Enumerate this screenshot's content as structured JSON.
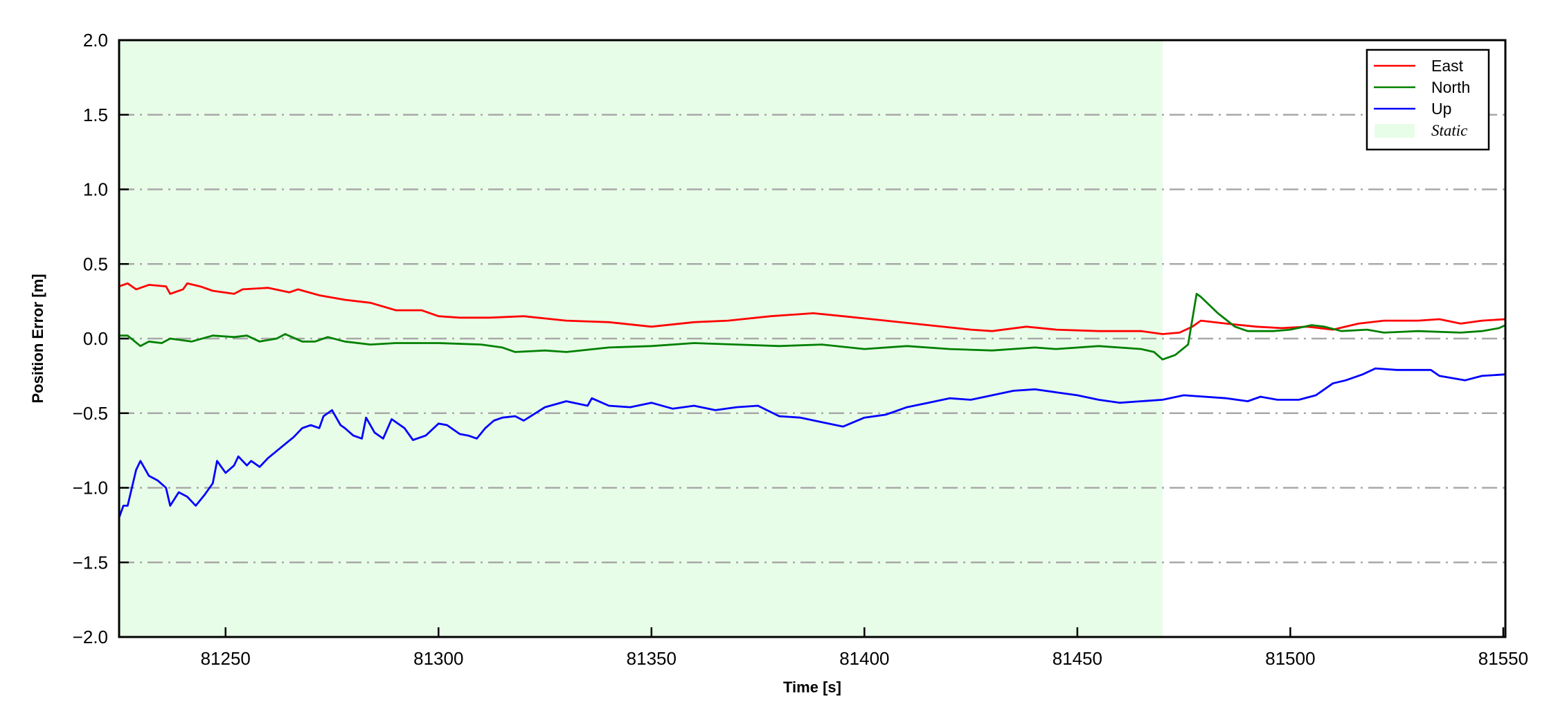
{
  "chart_data": {
    "type": "line",
    "title": "",
    "xlabel": "Time [s]",
    "ylabel": "Position Error [m]",
    "xlim": [
      81225,
      81550.5
    ],
    "ylim": [
      -2.0,
      2.0
    ],
    "xticks": [
      81250,
      81300,
      81350,
      81400,
      81450,
      81500,
      81550
    ],
    "xtick_labels": [
      "81250",
      "81300",
      "81350",
      "81400",
      "81450",
      "81500",
      "81550"
    ],
    "yticks": [
      -2.0,
      -1.5,
      -1.0,
      -0.5,
      0.0,
      0.5,
      1.0,
      1.5,
      2.0
    ],
    "ytick_labels": [
      "−2.0",
      "−1.5",
      "−1.0",
      "−0.5",
      "0.0",
      "0.5",
      "1.0",
      "1.5",
      "2.0"
    ],
    "grid": "horizontal dash-dot gray",
    "legend_position": "top-right",
    "shaded_region": {
      "label": "Static",
      "x": [
        81225,
        81470
      ],
      "color": "#e8fde8"
    },
    "series": [
      {
        "name": "East",
        "color": "#ff0000",
        "points": [
          [
            81225,
            0.35
          ],
          [
            81227,
            0.37
          ],
          [
            81229,
            0.33
          ],
          [
            81232,
            0.36
          ],
          [
            81236,
            0.35
          ],
          [
            81237,
            0.3
          ],
          [
            81240,
            0.33
          ],
          [
            81241,
            0.37
          ],
          [
            81244,
            0.35
          ],
          [
            81247,
            0.32
          ],
          [
            81252,
            0.3
          ],
          [
            81254,
            0.33
          ],
          [
            81260,
            0.34
          ],
          [
            81265,
            0.31
          ],
          [
            81267,
            0.33
          ],
          [
            81272,
            0.29
          ],
          [
            81278,
            0.26
          ],
          [
            81284,
            0.24
          ],
          [
            81290,
            0.19
          ],
          [
            81296,
            0.19
          ],
          [
            81300,
            0.15
          ],
          [
            81305,
            0.14
          ],
          [
            81312,
            0.14
          ],
          [
            81320,
            0.15
          ],
          [
            81330,
            0.12
          ],
          [
            81340,
            0.11
          ],
          [
            81350,
            0.08
          ],
          [
            81360,
            0.11
          ],
          [
            81368,
            0.12
          ],
          [
            81378,
            0.15
          ],
          [
            81388,
            0.17
          ],
          [
            81395,
            0.15
          ],
          [
            81405,
            0.12
          ],
          [
            81415,
            0.09
          ],
          [
            81425,
            0.06
          ],
          [
            81430,
            0.05
          ],
          [
            81438,
            0.08
          ],
          [
            81445,
            0.06
          ],
          [
            81455,
            0.05
          ],
          [
            81465,
            0.05
          ],
          [
            81470,
            0.03
          ],
          [
            81474,
            0.04
          ],
          [
            81477,
            0.08
          ],
          [
            81479,
            0.12
          ],
          [
            81485,
            0.1
          ],
          [
            81492,
            0.08
          ],
          [
            81498,
            0.07
          ],
          [
            81504,
            0.08
          ],
          [
            81510,
            0.06
          ],
          [
            81516,
            0.1
          ],
          [
            81522,
            0.12
          ],
          [
            81530,
            0.12
          ],
          [
            81535,
            0.13
          ],
          [
            81540,
            0.1
          ],
          [
            81545,
            0.12
          ],
          [
            81550.5,
            0.13
          ]
        ]
      },
      {
        "name": "North",
        "color": "#008000",
        "points": [
          [
            81225,
            0.02
          ],
          [
            81227,
            0.02
          ],
          [
            81230,
            -0.05
          ],
          [
            81232,
            -0.02
          ],
          [
            81235,
            -0.03
          ],
          [
            81237,
            0.0
          ],
          [
            81242,
            -0.02
          ],
          [
            81247,
            0.02
          ],
          [
            81252,
            0.01
          ],
          [
            81255,
            0.02
          ],
          [
            81258,
            -0.02
          ],
          [
            81262,
            0.0
          ],
          [
            81264,
            0.03
          ],
          [
            81268,
            -0.02
          ],
          [
            81271,
            -0.02
          ],
          [
            81274,
            0.01
          ],
          [
            81278,
            -0.02
          ],
          [
            81284,
            -0.04
          ],
          [
            81290,
            -0.03
          ],
          [
            81300,
            -0.03
          ],
          [
            81310,
            -0.04
          ],
          [
            81315,
            -0.06
          ],
          [
            81318,
            -0.09
          ],
          [
            81325,
            -0.08
          ],
          [
            81330,
            -0.09
          ],
          [
            81340,
            -0.06
          ],
          [
            81350,
            -0.05
          ],
          [
            81360,
            -0.03
          ],
          [
            81370,
            -0.04
          ],
          [
            81380,
            -0.05
          ],
          [
            81390,
            -0.04
          ],
          [
            81400,
            -0.07
          ],
          [
            81410,
            -0.05
          ],
          [
            81420,
            -0.07
          ],
          [
            81430,
            -0.08
          ],
          [
            81440,
            -0.06
          ],
          [
            81445,
            -0.07
          ],
          [
            81455,
            -0.05
          ],
          [
            81465,
            -0.07
          ],
          [
            81468,
            -0.09
          ],
          [
            81470,
            -0.14
          ],
          [
            81473,
            -0.11
          ],
          [
            81476,
            -0.04
          ],
          [
            81478,
            0.3
          ],
          [
            81479,
            0.28
          ],
          [
            81483,
            0.17
          ],
          [
            81487,
            0.08
          ],
          [
            81490,
            0.05
          ],
          [
            81496,
            0.05
          ],
          [
            81500,
            0.06
          ],
          [
            81505,
            0.09
          ],
          [
            81508,
            0.08
          ],
          [
            81512,
            0.05
          ],
          [
            81518,
            0.06
          ],
          [
            81522,
            0.04
          ],
          [
            81530,
            0.05
          ],
          [
            81540,
            0.04
          ],
          [
            81545,
            0.05
          ],
          [
            81549,
            0.07
          ],
          [
            81550.5,
            0.09
          ]
        ]
      },
      {
        "name": "Up",
        "color": "#0000ff",
        "points": [
          [
            81225,
            -1.2
          ],
          [
            81226,
            -1.12
          ],
          [
            81227,
            -1.12
          ],
          [
            81229,
            -0.88
          ],
          [
            81230,
            -0.82
          ],
          [
            81232,
            -0.92
          ],
          [
            81234,
            -0.95
          ],
          [
            81236,
            -1.0
          ],
          [
            81237,
            -1.12
          ],
          [
            81239,
            -1.03
          ],
          [
            81241,
            -1.06
          ],
          [
            81243,
            -1.12
          ],
          [
            81245,
            -1.05
          ],
          [
            81247,
            -0.97
          ],
          [
            81248,
            -0.82
          ],
          [
            81250,
            -0.9
          ],
          [
            81252,
            -0.85
          ],
          [
            81253,
            -0.79
          ],
          [
            81255,
            -0.85
          ],
          [
            81256,
            -0.82
          ],
          [
            81258,
            -0.86
          ],
          [
            81260,
            -0.8
          ],
          [
            81263,
            -0.73
          ],
          [
            81266,
            -0.66
          ],
          [
            81268,
            -0.6
          ],
          [
            81270,
            -0.58
          ],
          [
            81272,
            -0.6
          ],
          [
            81273,
            -0.52
          ],
          [
            81275,
            -0.48
          ],
          [
            81277,
            -0.58
          ],
          [
            81278,
            -0.6
          ],
          [
            81280,
            -0.65
          ],
          [
            81282,
            -0.67
          ],
          [
            81283,
            -0.53
          ],
          [
            81285,
            -0.63
          ],
          [
            81287,
            -0.67
          ],
          [
            81289,
            -0.54
          ],
          [
            81292,
            -0.6
          ],
          [
            81294,
            -0.68
          ],
          [
            81297,
            -0.65
          ],
          [
            81300,
            -0.57
          ],
          [
            81302,
            -0.58
          ],
          [
            81305,
            -0.64
          ],
          [
            81307,
            -0.65
          ],
          [
            81309,
            -0.67
          ],
          [
            81311,
            -0.6
          ],
          [
            81313,
            -0.55
          ],
          [
            81315,
            -0.53
          ],
          [
            81318,
            -0.52
          ],
          [
            81320,
            -0.55
          ],
          [
            81325,
            -0.46
          ],
          [
            81330,
            -0.42
          ],
          [
            81335,
            -0.45
          ],
          [
            81336,
            -0.4
          ],
          [
            81340,
            -0.45
          ],
          [
            81345,
            -0.46
          ],
          [
            81350,
            -0.43
          ],
          [
            81355,
            -0.47
          ],
          [
            81360,
            -0.45
          ],
          [
            81365,
            -0.48
          ],
          [
            81370,
            -0.46
          ],
          [
            81375,
            -0.45
          ],
          [
            81380,
            -0.52
          ],
          [
            81385,
            -0.53
          ],
          [
            81390,
            -0.56
          ],
          [
            81395,
            -0.59
          ],
          [
            81400,
            -0.53
          ],
          [
            81405,
            -0.51
          ],
          [
            81410,
            -0.46
          ],
          [
            81415,
            -0.43
          ],
          [
            81420,
            -0.4
          ],
          [
            81425,
            -0.41
          ],
          [
            81430,
            -0.38
          ],
          [
            81435,
            -0.35
          ],
          [
            81440,
            -0.34
          ],
          [
            81445,
            -0.36
          ],
          [
            81450,
            -0.38
          ],
          [
            81455,
            -0.41
          ],
          [
            81460,
            -0.43
          ],
          [
            81465,
            -0.42
          ],
          [
            81470,
            -0.41
          ],
          [
            81475,
            -0.38
          ],
          [
            81485,
            -0.4
          ],
          [
            81490,
            -0.42
          ],
          [
            81493,
            -0.39
          ],
          [
            81497,
            -0.41
          ],
          [
            81502,
            -0.41
          ],
          [
            81506,
            -0.38
          ],
          [
            81510,
            -0.3
          ],
          [
            81513,
            -0.28
          ],
          [
            81517,
            -0.24
          ],
          [
            81520,
            -0.2
          ],
          [
            81525,
            -0.21
          ],
          [
            81530,
            -0.21
          ],
          [
            81533,
            -0.21
          ],
          [
            81535,
            -0.25
          ],
          [
            81541,
            -0.28
          ],
          [
            81545,
            -0.25
          ],
          [
            81550.5,
            -0.24
          ]
        ]
      }
    ]
  }
}
